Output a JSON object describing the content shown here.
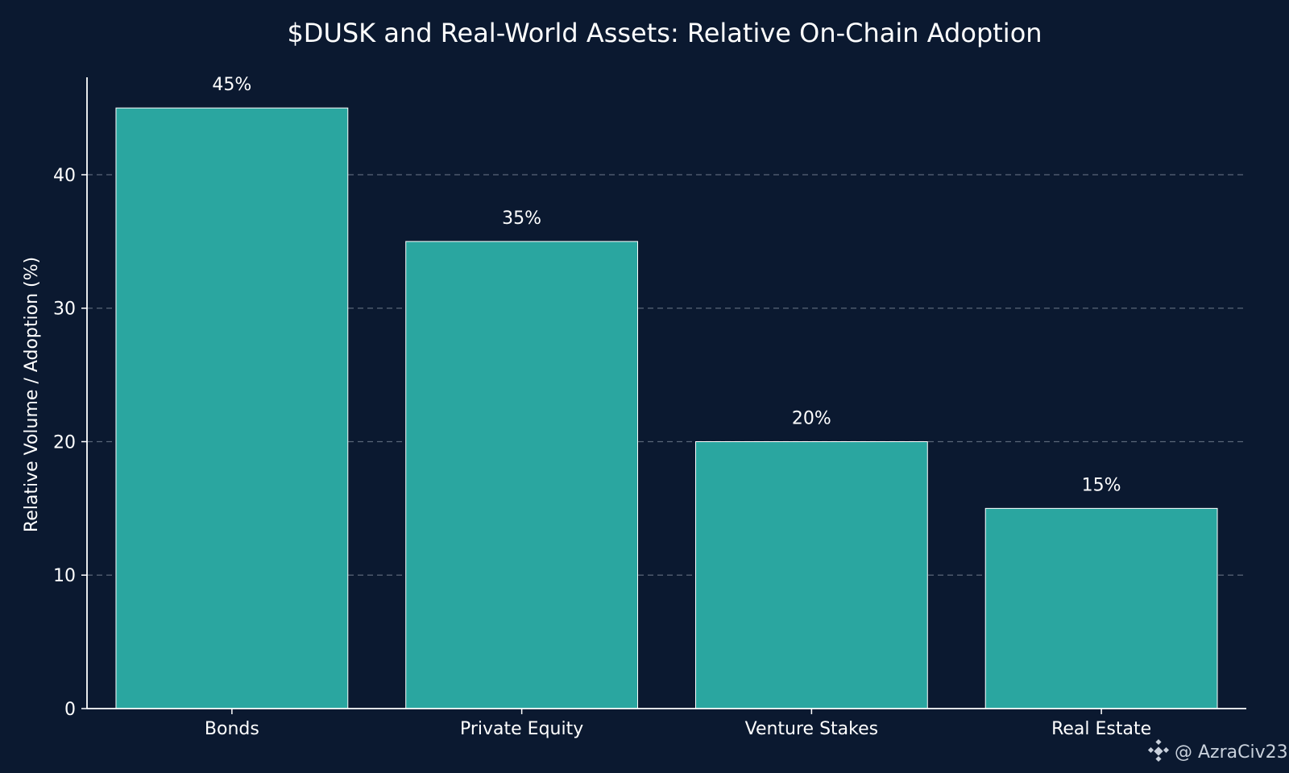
{
  "chart_data": {
    "type": "bar",
    "title": "$DUSK and Real-World Assets: Relative On-Chain Adoption",
    "xlabel": "",
    "ylabel": "Relative Volume / Adoption (%)",
    "categories": [
      "Bonds",
      "Private Equity",
      "Venture Stakes",
      "Real Estate"
    ],
    "values": [
      45,
      35,
      20,
      15
    ],
    "data_labels": [
      "45%",
      "35%",
      "20%",
      "15%"
    ],
    "ylim": [
      0,
      47.3
    ],
    "yticks": [
      0,
      10,
      20,
      30,
      40
    ],
    "grid": "horizontal dashed",
    "legend": "none"
  },
  "colors": {
    "background": "#0b1930",
    "bar": "#2aa6a0",
    "bar_edge": "#ffffff",
    "axis": "#ffffff",
    "grid": "#5a6678"
  },
  "watermark": {
    "icon": "binance-diamond-icon",
    "text": "@ AzraCiv23"
  }
}
